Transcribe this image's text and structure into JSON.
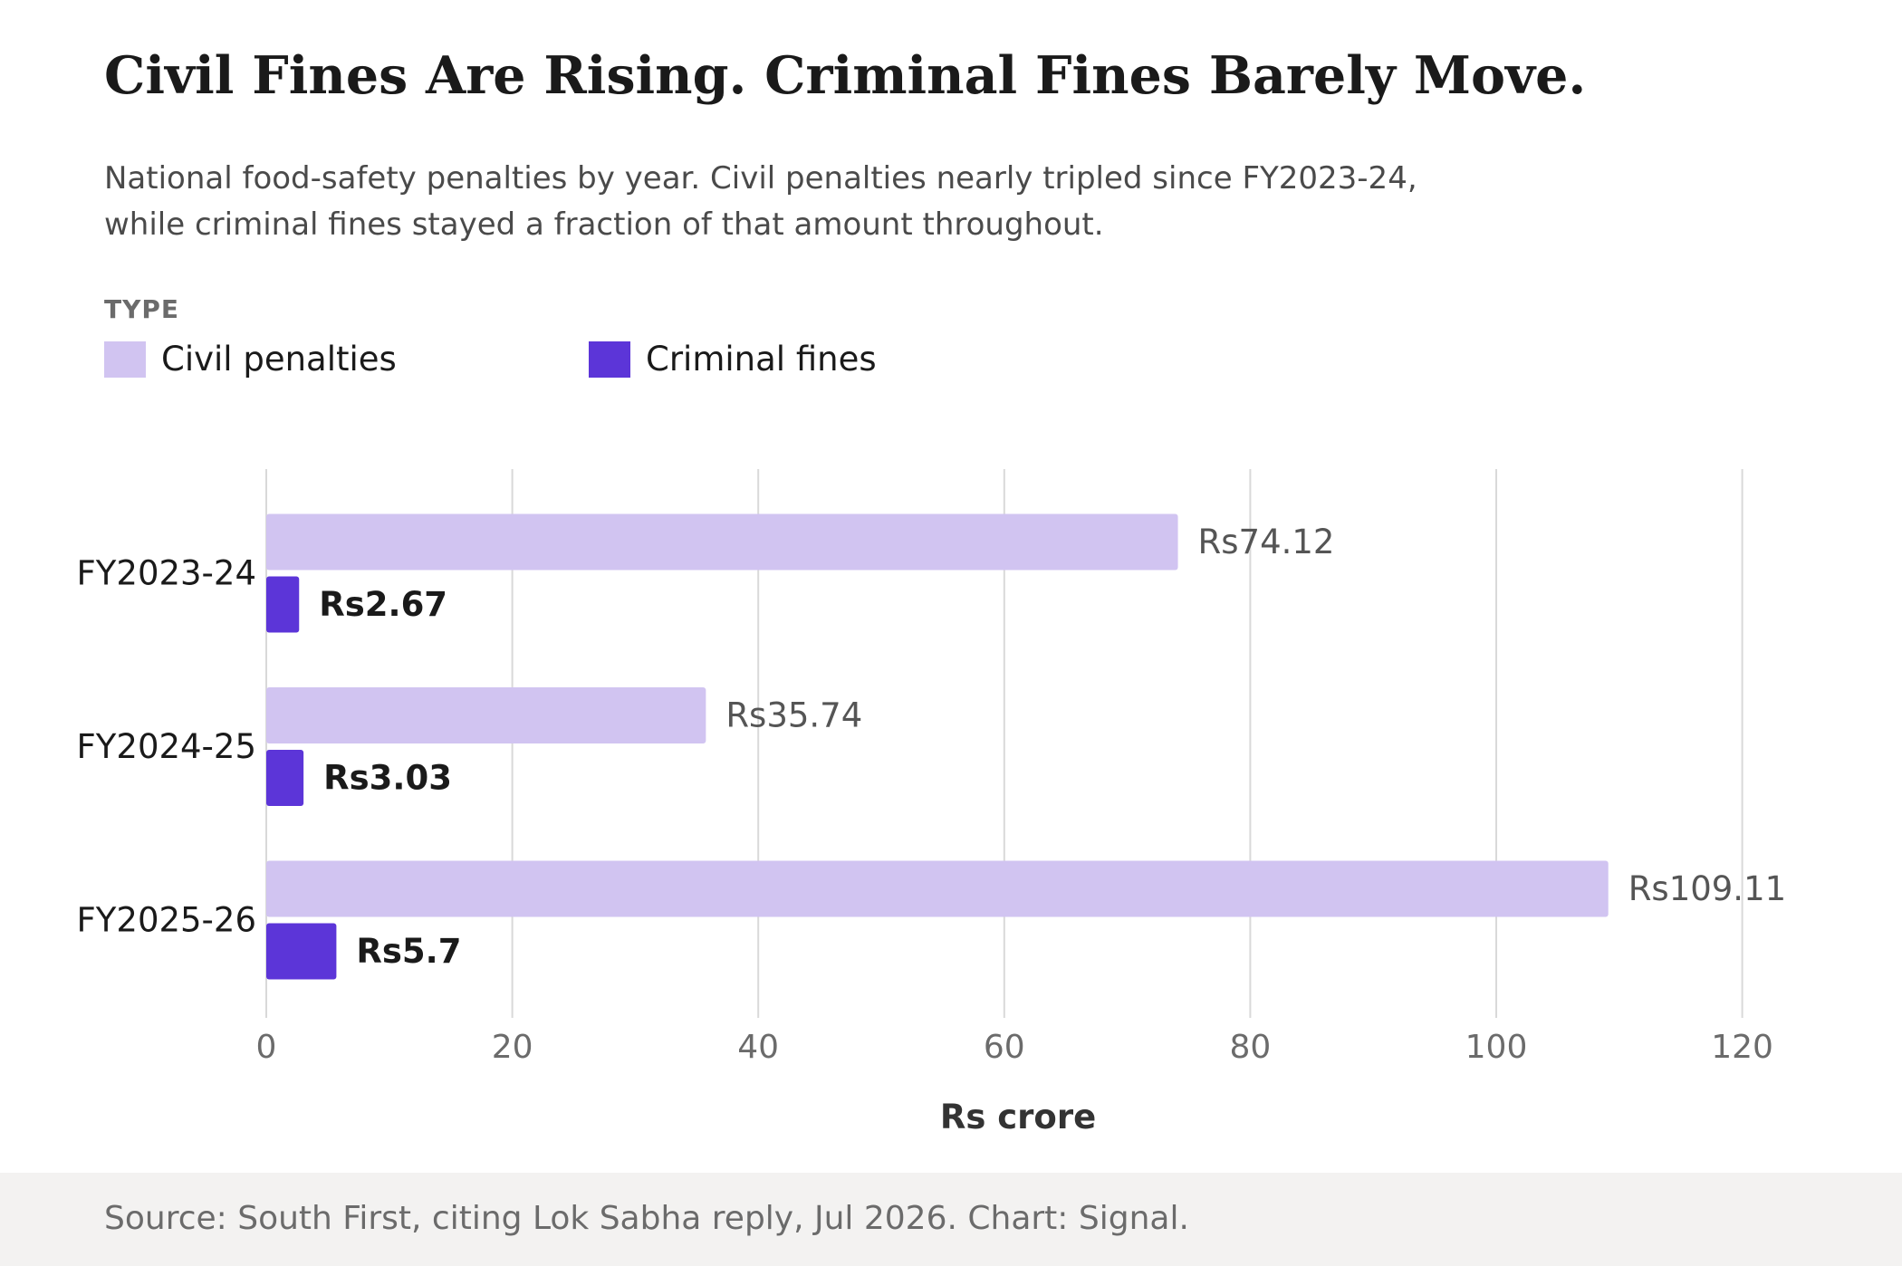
{
  "title": "Civil Fines Are Rising. Criminal Fines Barely Move.",
  "subtitle": "National food-safety penalties by year. Civil penalties nearly tripled since FY2023-24, while criminal fines stayed a fraction of that amount throughout.",
  "legend": {
    "title": "TYPE",
    "items": [
      {
        "label": "Civil penalties",
        "color": "#d1c4f1"
      },
      {
        "label": "Criminal fines",
        "color": "#5c35d8"
      }
    ]
  },
  "footer": {
    "source": "Source: South First, citing Lok Sabha reply, Jul 2026. Chart: Signal."
  },
  "chart_data": {
    "type": "bar",
    "orientation": "horizontal",
    "categories": [
      "FY2023-24",
      "FY2024-25",
      "FY2025-26"
    ],
    "series": [
      {
        "name": "Civil penalties",
        "color": "#d1c4f1",
        "values": [
          74.12,
          35.74,
          109.11
        ],
        "labels": [
          "Rs74.12",
          "Rs35.74",
          "Rs109.11"
        ]
      },
      {
        "name": "Criminal fines",
        "color": "#5c35d8",
        "values": [
          2.67,
          3.03,
          5.7
        ],
        "labels": [
          "Rs2.67",
          "Rs3.03",
          "Rs5.7"
        ]
      }
    ],
    "xlabel": "Rs crore",
    "ylabel": "",
    "xlim": [
      0,
      120
    ],
    "xticks": [
      0,
      20,
      40,
      60,
      80,
      100,
      120
    ],
    "grid": true,
    "legend_position": "top-left"
  }
}
